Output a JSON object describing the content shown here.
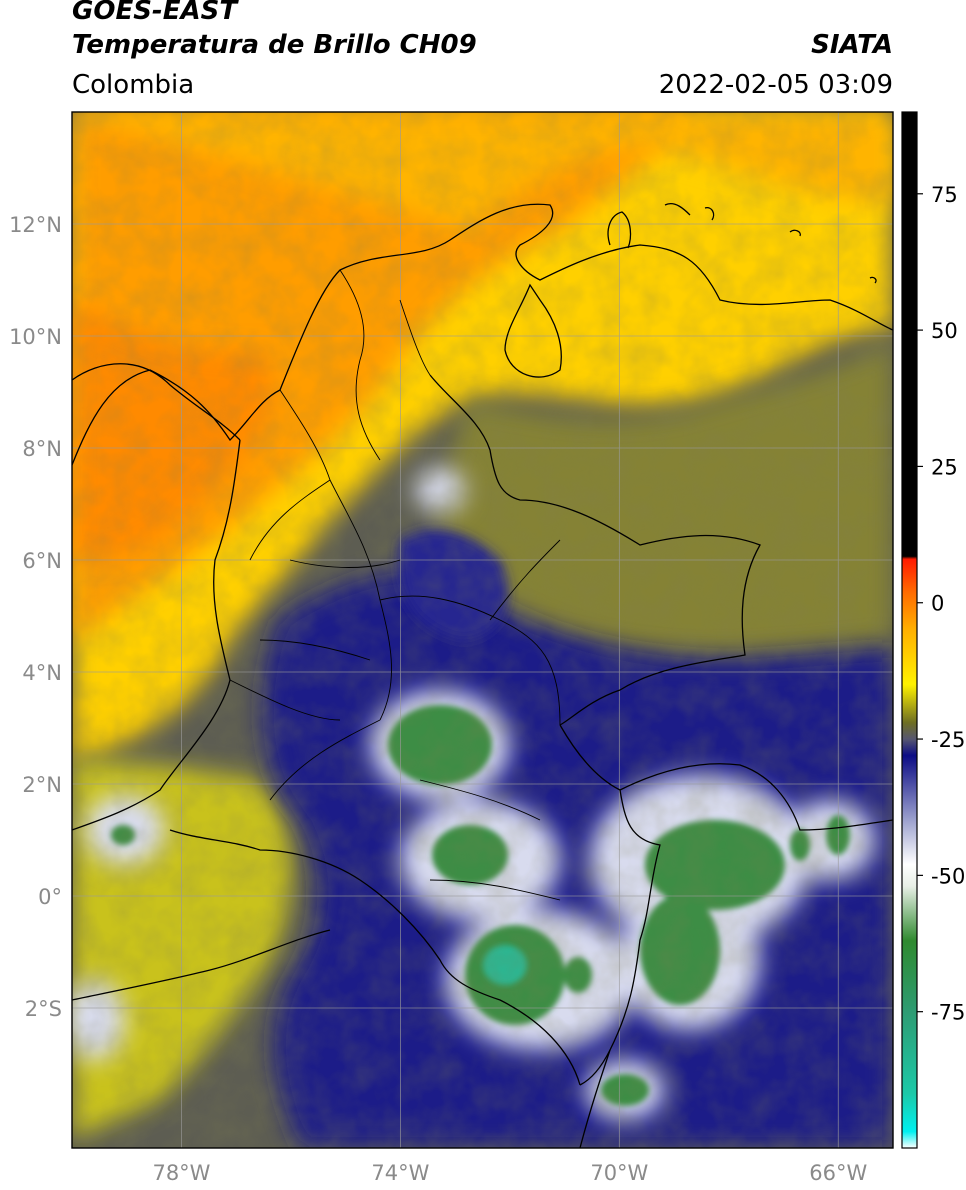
{
  "header": {
    "satellite": "GOES-EAST",
    "product": "Temperatura de Brillo CH09",
    "org": "SIATA",
    "region": "Colombia",
    "datetime": "2022-02-05 03:09"
  },
  "map": {
    "lon_range": [
      -80,
      -65
    ],
    "lat_range": [
      -4.5,
      14
    ],
    "lon_ticks": [
      {
        "value": -78,
        "label": "78°W"
      },
      {
        "value": -74,
        "label": "74°W"
      },
      {
        "value": -70,
        "label": "70°W"
      },
      {
        "value": -66,
        "label": "66°W"
      }
    ],
    "lat_ticks": [
      {
        "value": 12,
        "label": "12°N"
      },
      {
        "value": 10,
        "label": "10°N"
      },
      {
        "value": 8,
        "label": "8°N"
      },
      {
        "value": 6,
        "label": "6°N"
      },
      {
        "value": 4,
        "label": "4°N"
      },
      {
        "value": 2,
        "label": "2°N"
      },
      {
        "value": 0,
        "label": "0°"
      },
      {
        "value": -2,
        "label": "2°S"
      }
    ]
  },
  "colorbar": {
    "range": [
      -100,
      90
    ],
    "ticks": [
      {
        "value": 75,
        "label": "75"
      },
      {
        "value": 50,
        "label": "50"
      },
      {
        "value": 25,
        "label": "25"
      },
      {
        "value": 0,
        "label": "0"
      },
      {
        "value": -25,
        "label": "-25"
      },
      {
        "value": -50,
        "label": "-50"
      },
      {
        "value": -75,
        "label": "-75"
      }
    ],
    "stops": [
      {
        "value": -100,
        "color": "#ffffff"
      },
      {
        "value": -97,
        "color": "#00f0f0"
      },
      {
        "value": -90,
        "color": "#1cc9a8"
      },
      {
        "value": -75,
        "color": "#2e9c73"
      },
      {
        "value": -62,
        "color": "#2f8a2f"
      },
      {
        "value": -52,
        "color": "#e8efe6"
      },
      {
        "value": -48,
        "color": "#ffffff"
      },
      {
        "value": -40,
        "color": "#9ea3cf"
      },
      {
        "value": -28,
        "color": "#0c0c85"
      },
      {
        "value": -25,
        "color": "#565670"
      },
      {
        "value": -22,
        "color": "#6e6e22"
      },
      {
        "value": -15,
        "color": "#fff200"
      },
      {
        "value": -5,
        "color": "#ffb000"
      },
      {
        "value": 2,
        "color": "#ff6a00"
      },
      {
        "value": 8,
        "color": "#ff1a00"
      },
      {
        "value": 8.5,
        "color": "#000000"
      },
      {
        "value": 90,
        "color": "#000000"
      }
    ]
  }
}
